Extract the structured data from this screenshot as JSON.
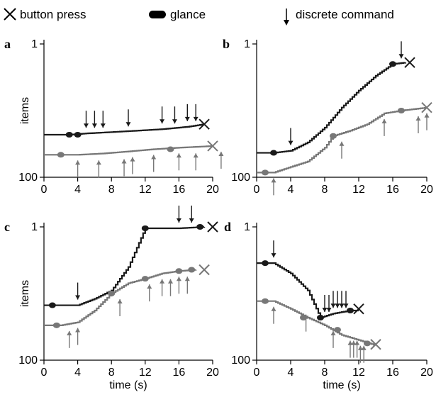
{
  "legend": {
    "button_press": "button press",
    "glance": "glance",
    "discrete_command": "discrete command"
  },
  "colors": {
    "dark": "#1a1a1a",
    "gray": "#777777",
    "axis": "#000000"
  },
  "chart_data": [
    {
      "panel": "a",
      "type": "line",
      "xlabel": "",
      "ylabel": "items",
      "xlim": [
        0,
        20
      ],
      "xticks": [
        0,
        4,
        8,
        12,
        16,
        20
      ],
      "ylim_log": [
        1,
        100
      ],
      "yticks": [
        1,
        100
      ],
      "yscale": "log",
      "y_inverted": true,
      "series": [
        {
          "color": "dark",
          "curve": [
            [
              0,
              23
            ],
            [
              3,
              23
            ],
            [
              5,
              22
            ],
            [
              8,
              21
            ],
            [
              11,
              20
            ],
            [
              14,
              19
            ],
            [
              17,
              17.5
            ],
            [
              19,
              16
            ]
          ],
          "glances": [
            [
              3,
              23
            ],
            [
              4,
              23
            ]
          ],
          "press": [
            19,
            16
          ],
          "commands": [
            5,
            6,
            7,
            10,
            14,
            15.5,
            17,
            18
          ]
        },
        {
          "color": "gray",
          "curve": [
            [
              0,
              46
            ],
            [
              4,
              46
            ],
            [
              7,
              44
            ],
            [
              10,
              41
            ],
            [
              13,
              38
            ],
            [
              16,
              36
            ],
            [
              20,
              34
            ]
          ],
          "glances": [
            [
              2,
              46
            ],
            [
              15,
              38
            ]
          ],
          "press": [
            20,
            34
          ],
          "commands": [
            4,
            6.5,
            9.5,
            10.5,
            13,
            16,
            18,
            21
          ]
        }
      ]
    },
    {
      "panel": "b",
      "type": "line",
      "xlabel": "",
      "ylabel": "",
      "xlim": [
        0,
        20
      ],
      "xticks": [
        0,
        4,
        8,
        12,
        16,
        20
      ],
      "ylim_log": [
        1,
        100
      ],
      "yticks": [
        1,
        100
      ],
      "yscale": "log",
      "y_inverted": true,
      "series": [
        {
          "color": "dark",
          "curve": [
            [
              0,
              43
            ],
            [
              2,
              43
            ],
            [
              4,
              40
            ],
            [
              6,
              30
            ],
            [
              8,
              18
            ],
            [
              10,
              9
            ],
            [
              12,
              5
            ],
            [
              14,
              3
            ],
            [
              16,
              2
            ],
            [
              17.5,
              1.9
            ]
          ],
          "glances": [
            [
              2,
              43
            ],
            [
              16,
              2
            ]
          ],
          "press": [
            18,
            1.9
          ],
          "commands": [
            4,
            17
          ]
        },
        {
          "color": "gray",
          "curve": [
            [
              0,
              85
            ],
            [
              2,
              85
            ],
            [
              4,
              70
            ],
            [
              6,
              58
            ],
            [
              8,
              36
            ],
            [
              9,
              24
            ],
            [
              11,
              20
            ],
            [
              13,
              16
            ],
            [
              15,
              11
            ],
            [
              17,
              10
            ],
            [
              20,
              9
            ]
          ],
          "glances": [
            [
              1,
              85
            ],
            [
              9,
              24
            ],
            [
              17,
              10
            ]
          ],
          "press": [
            20,
            9
          ],
          "commands": [
            2,
            10,
            15,
            19,
            20
          ]
        }
      ]
    },
    {
      "panel": "c",
      "type": "line",
      "xlabel": "time (s)",
      "ylabel": "items",
      "xlim": [
        0,
        20
      ],
      "xticks": [
        0,
        4,
        8,
        12,
        16,
        20
      ],
      "ylim_log": [
        1,
        100
      ],
      "yticks": [
        1,
        100
      ],
      "yscale": "log",
      "y_inverted": true,
      "series": [
        {
          "color": "dark",
          "curve": [
            [
              0,
              15
            ],
            [
              4,
              15
            ],
            [
              6,
              12
            ],
            [
              8,
              9
            ],
            [
              10,
              4
            ],
            [
              12,
              1.05
            ],
            [
              16,
              1.05
            ],
            [
              19,
              1
            ]
          ],
          "glances": [
            [
              1,
              15
            ],
            [
              12,
              1.05
            ],
            [
              18.5,
              1
            ]
          ],
          "press": [
            20,
            1
          ],
          "commands": [
            4,
            16,
            17.5
          ]
        },
        {
          "color": "gray",
          "curve": [
            [
              0,
              30
            ],
            [
              2,
              30
            ],
            [
              4,
              27
            ],
            [
              6,
              18
            ],
            [
              8,
              10
            ],
            [
              10,
              7
            ],
            [
              12,
              6
            ],
            [
              14,
              5
            ],
            [
              16,
              4.6
            ],
            [
              18,
              4.4
            ]
          ],
          "glances": [
            [
              1.5,
              30
            ],
            [
              8,
              10
            ],
            [
              12,
              6
            ],
            [
              16,
              4.6
            ],
            [
              17.5,
              4.4
            ]
          ],
          "press": [
            19,
            4.4
          ],
          "commands": [
            3,
            4,
            9,
            12.5,
            14,
            15,
            16,
            17
          ]
        }
      ]
    },
    {
      "panel": "d",
      "type": "line",
      "xlabel": "time (s)",
      "ylabel": "",
      "xlim": [
        0,
        20
      ],
      "xticks": [
        0,
        4,
        8,
        12,
        16,
        20
      ],
      "ylim_log": [
        1,
        100
      ],
      "yticks": [
        1,
        100
      ],
      "yscale": "log",
      "y_inverted": true,
      "series": [
        {
          "color": "dark",
          "curve": [
            [
              0,
              3.5
            ],
            [
              2,
              3.5
            ],
            [
              4,
              5
            ],
            [
              6,
              9
            ],
            [
              7.5,
              23
            ],
            [
              9,
              20
            ],
            [
              11,
              18
            ],
            [
              12,
              18
            ]
          ],
          "glances": [
            [
              1,
              3.5
            ],
            [
              7.5,
              23
            ],
            [
              11,
              18
            ]
          ],
          "press": [
            12,
            17
          ],
          "commands": [
            2,
            8,
            8.5,
            9,
            9.5,
            10,
            10.5
          ]
        },
        {
          "color": "gray",
          "curve": [
            [
              0,
              13
            ],
            [
              2,
              13
            ],
            [
              4,
              17
            ],
            [
              6,
              23
            ],
            [
              8,
              30
            ],
            [
              10,
              42
            ],
            [
              12,
              50
            ],
            [
              14,
              60
            ]
          ],
          "glances": [
            [
              1,
              13
            ],
            [
              5.5,
              23
            ],
            [
              9.5,
              35
            ],
            [
              13,
              56
            ]
          ],
          "press": [
            14,
            58
          ],
          "commands": [
            2,
            5.8,
            9,
            11,
            11.4,
            11.8,
            12.2,
            12.6
          ]
        }
      ]
    }
  ]
}
